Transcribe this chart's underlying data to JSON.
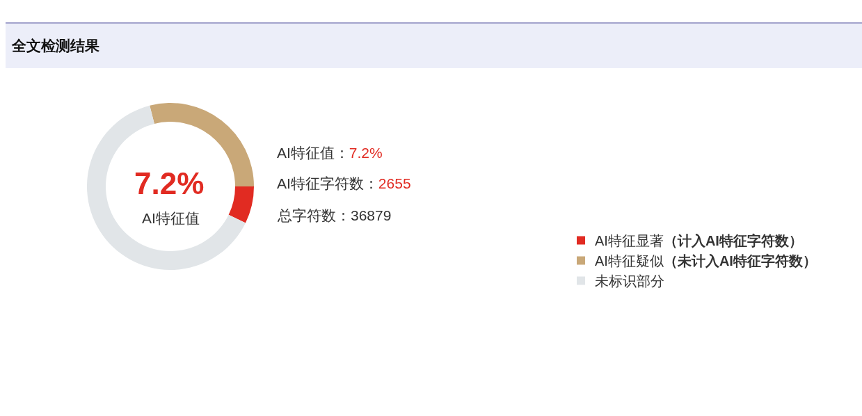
{
  "chart_data": {
    "type": "donut",
    "title": "全文检测结果",
    "categories": [
      "AI特征显著（计入AI特征字符数）",
      "AI特征疑似（未计入AI特征字符数）",
      "未标识部分"
    ],
    "values": [
      7.2,
      29.0,
      63.8
    ],
    "colors": [
      "#e12b22",
      "#c9a878",
      "#e1e5e8"
    ],
    "legend": "right",
    "annotations": [
      "7.2%",
      "AI特征值",
      "AI特征值：7.2%",
      "AI特征字符数：2655",
      "总字符数：36879"
    ]
  }
}
